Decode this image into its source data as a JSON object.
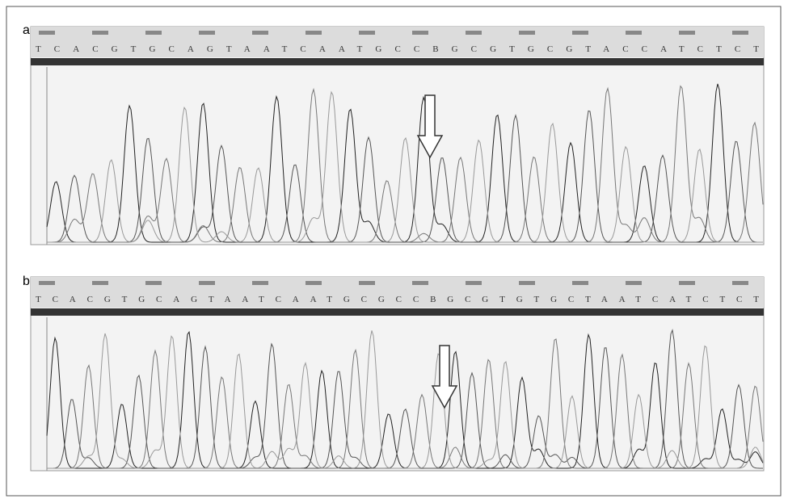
{
  "panels": [
    {
      "label": "a",
      "sequence": "TCACGTGCAGTAATCAATGCCBGCGTGCGTACCATCTCT"
    },
    {
      "label": "b",
      "sequence": "TCACGTGCAGTAATCAATGCGCCBGCGTGTGCTAATCATCTCT"
    }
  ]
}
